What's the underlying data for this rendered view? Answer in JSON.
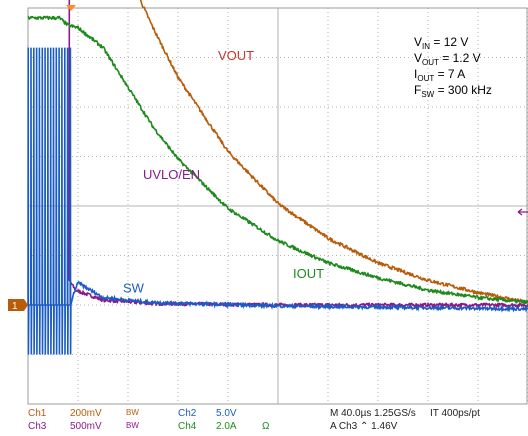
{
  "chart_data": {
    "type": "line",
    "title": "",
    "xlabel": "",
    "ylabel": "",
    "grid": true,
    "divisions": {
      "x": 10,
      "y": 8
    },
    "x_range": [
      0,
      400
    ],
    "x_unit": "µs",
    "colors": {
      "VOUT": "#b85c0a",
      "IOUT": "#1e8a1e",
      "UVLO/EN": "#8a1a8a",
      "SW": "#1a5cc4",
      "trigger": "#ff8c1a",
      "grid": "#9e9e9e"
    },
    "annotations": {
      "conditions": [
        {
          "sym": "V",
          "sub": "IN",
          "val": " = 12 V"
        },
        {
          "sym": "V",
          "sub": "OUT",
          "val": " = 1.2 V"
        },
        {
          "sym": "I",
          "sub": "OUT",
          "val": " = 7 A"
        },
        {
          "sym": "F",
          "sub": "SW",
          "val": " = 300 kHz"
        }
      ],
      "labels": [
        {
          "text": "VOUT",
          "color": "#c0392b",
          "x": 152,
          "y": 6.95
        },
        {
          "text": "UVLO/EN",
          "color": "#8a1a8a",
          "x": 92,
          "y": 4.55
        },
        {
          "text": "IOUT",
          "color": "#1e8a1e",
          "x": 212,
          "y": 2.55
        },
        {
          "text": "SW",
          "color": "#1a5cc4",
          "x": 76,
          "y": 2.25
        }
      ],
      "ground_marker": "1"
    },
    "series": [
      {
        "name": "VOUT",
        "x": [
          0,
          40,
          60,
          80,
          100,
          120,
          160,
          200,
          240,
          280,
          320,
          360,
          400
        ],
        "y": [
          11.0,
          11.0,
          10.0,
          8.7,
          7.6,
          6.6,
          5.1,
          4.05,
          3.35,
          2.85,
          2.5,
          2.25,
          2.05
        ]
      },
      {
        "name": "IOUT",
        "x": [
          0,
          25,
          32,
          40,
          60,
          80,
          100,
          120,
          160,
          200,
          240,
          280,
          320,
          360,
          400
        ],
        "y": [
          7.8,
          7.8,
          7.65,
          7.6,
          7.2,
          6.4,
          5.6,
          4.95,
          3.95,
          3.3,
          2.85,
          2.55,
          2.3,
          2.15,
          2.05
        ]
      },
      {
        "name": "UVLO/EN",
        "x": [
          0,
          33,
          33,
          38,
          60,
          100,
          200,
          300,
          400
        ],
        "y": [
          10.1,
          10.1,
          2.5,
          2.3,
          2.1,
          2.03,
          2.0,
          2.0,
          2.0
        ]
      },
      {
        "name": "SW",
        "x": [
          0,
          33,
          40,
          60,
          100,
          200,
          300,
          400
        ],
        "y": [
          2.0,
          2.0,
          2.45,
          2.15,
          2.05,
          1.98,
          1.95,
          1.92
        ]
      }
    ],
    "sw_burst": {
      "start": 0,
      "end": 36,
      "pulses": 16,
      "high": 7.2,
      "low": 1.0,
      "base": 2.0
    }
  },
  "status": {
    "ch1_label": "Ch1",
    "ch1_scale": "200mV",
    "ch1_bw": "BW",
    "ch2_label": "Ch2",
    "ch2_scale": "5.0V",
    "ch3_label": "Ch3",
    "ch3_scale": "500mV",
    "ch3_bw": "BW",
    "ch4_label": "Ch4",
    "ch4_scale": "2.0A",
    "ch4_unit": "Ω",
    "timebase": "M 40.0µs 1.25GS/s",
    "record": "IT 400ps/pt",
    "trigger": "A  Ch3  ⌃  1.46V"
  }
}
